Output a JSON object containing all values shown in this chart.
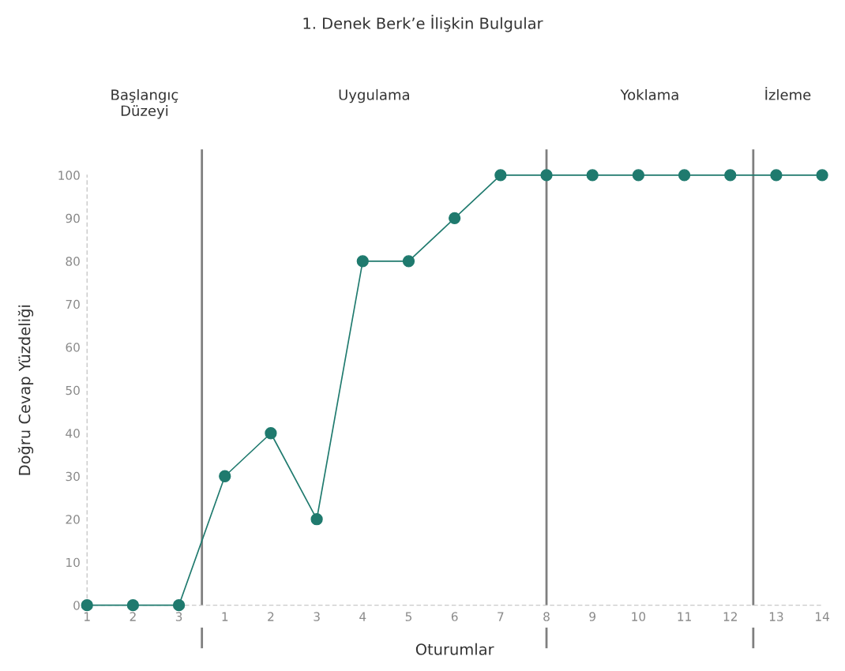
{
  "chart_data": {
    "type": "line",
    "title": "1. Denek Berk’e İlişkin Bulgular",
    "xlabel": "Oturumlar",
    "ylabel": "Doğru Cevap Yüzdeliği",
    "categories": [
      "1",
      "2",
      "3",
      "1",
      "2",
      "3",
      "4",
      "5",
      "6",
      "7",
      "8",
      "9",
      "10",
      "11",
      "12",
      "13",
      "14"
    ],
    "series": [
      {
        "color": "#1f7a6e",
        "values": [
          0,
          0,
          0,
          30,
          40,
          20,
          80,
          80,
          90,
          100,
          100,
          100,
          100,
          100,
          100,
          100,
          100
        ]
      }
    ],
    "marker": "circle",
    "line_style": "solid",
    "grid": false,
    "legend": false,
    "ylim": [
      0,
      100
    ],
    "yticks": [
      0,
      10,
      20,
      30,
      40,
      50,
      60,
      70,
      80,
      90,
      100
    ],
    "ref_lines": [
      {
        "axis": "x",
        "value": "8",
        "color": "#7f7f7f"
      }
    ],
    "annotations": [
      "Başlangıç\nDüzeyi",
      "Uygulama",
      "Yoklama",
      "İzleme"
    ]
  }
}
